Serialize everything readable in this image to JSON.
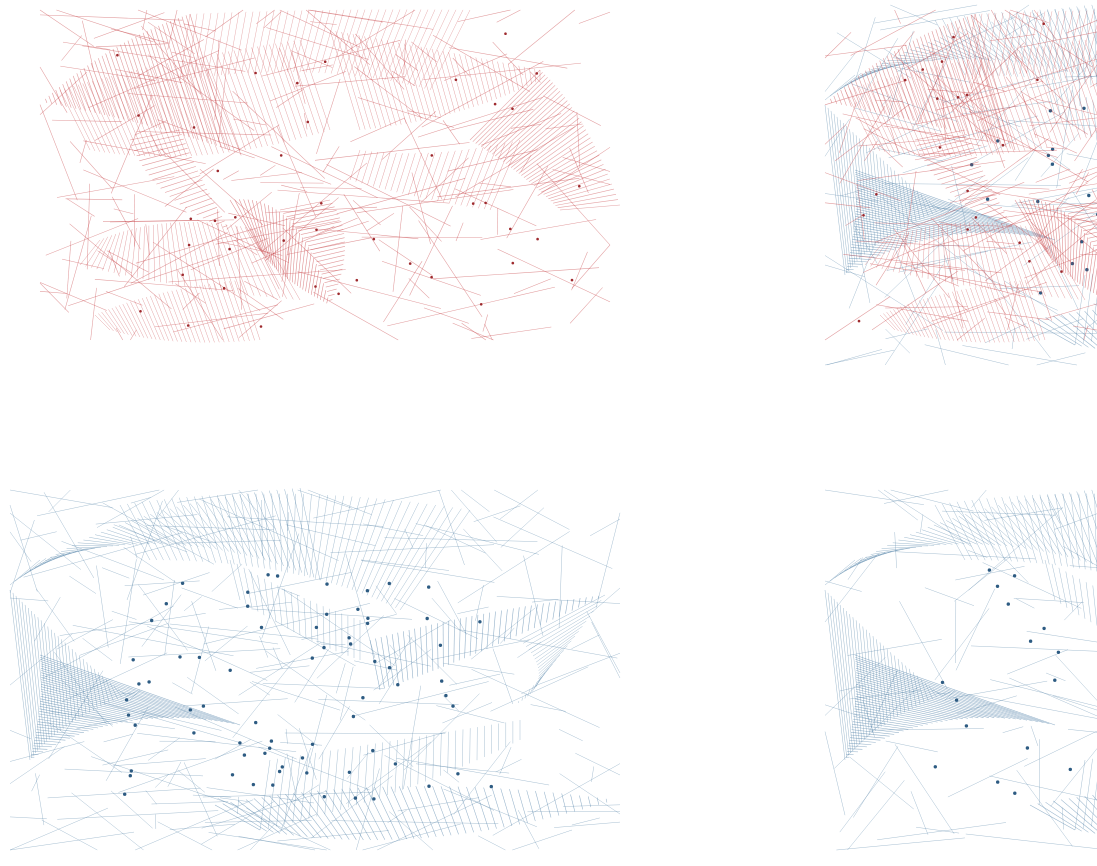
{
  "figure": {
    "panels": [
      {
        "id": "top-left",
        "name": "panel-top-left",
        "layers": [
          "red"
        ]
      },
      {
        "id": "top-right",
        "name": "panel-top-right",
        "layers": [
          "blue",
          "red"
        ]
      },
      {
        "id": "bottom-left",
        "name": "panel-bottom-left",
        "layers": [
          "blue"
        ]
      },
      {
        "id": "bottom-right",
        "name": "panel-bottom-right",
        "layers": [
          "blue"
        ]
      }
    ]
  },
  "colors": {
    "red_edge": "#c9474b",
    "red_node": "#9e2a2e",
    "blue_edge": "#4f7fa6",
    "blue_node": "#2d5b82",
    "background": "#ffffff"
  }
}
